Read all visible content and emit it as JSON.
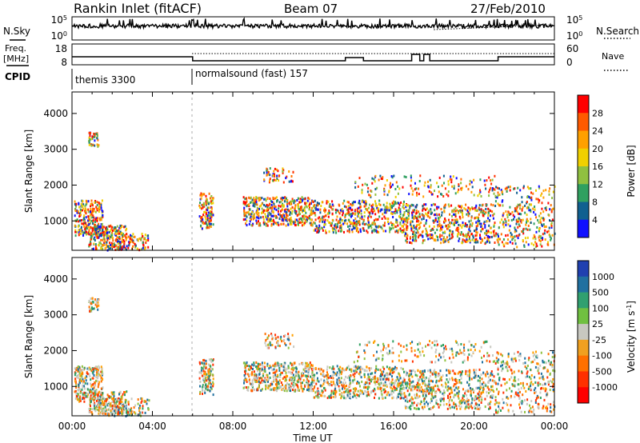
{
  "header": {
    "title": "Rankin Inlet (fitACF)",
    "beam": "Beam 07",
    "date": "27/Feb/2010"
  },
  "nsky_panel": {
    "left_label": "N.Sky",
    "left_ticks": [
      "10^5",
      "10^0"
    ],
    "right_ticks": [
      "10^5",
      "10^0"
    ],
    "right_label": "N.Search"
  },
  "freq_panel": {
    "left_label_1": "Freq.",
    "left_label_2": "[MHz]",
    "left_ticks": [
      "18",
      "8"
    ],
    "right_ticks": [
      "60",
      "0"
    ],
    "right_label": "Nave"
  },
  "cpid_panel": {
    "label": "CPID",
    "modes": [
      {
        "name": "themis 3300",
        "start_hour": 0,
        "end_hour": 6
      },
      {
        "name": "normalsound (fast) 157",
        "start_hour": 6,
        "end_hour": 24
      }
    ]
  },
  "x_axis": {
    "label": "Time UT",
    "ticks": [
      "00:00",
      "04:00",
      "08:00",
      "12:00",
      "16:00",
      "20:00",
      "00:00"
    ],
    "range_hours": [
      0,
      24
    ]
  },
  "chart_data": [
    {
      "type": "heatmap",
      "name": "power",
      "ylabel": "Slant Range [km]",
      "yticks": [
        "1000",
        "2000",
        "3000",
        "4000"
      ],
      "ylim": [
        180,
        4600
      ],
      "colorbar_label": "Power [dB]",
      "colorbar_ticks": [
        "28",
        "24",
        "20",
        "16",
        "12",
        "8",
        "4"
      ],
      "colorbar_colors": [
        "#ff0000",
        "#ff5a00",
        "#ffa000",
        "#f0d000",
        "#90c040",
        "#30a060",
        "#106090",
        "#1010ff"
      ]
    },
    {
      "type": "heatmap",
      "name": "velocity",
      "ylabel": "Slant Range [km]",
      "yticks": [
        "1000",
        "2000",
        "3000",
        "4000"
      ],
      "ylim": [
        180,
        4600
      ],
      "colorbar_label": "Velocity [m s^-1]",
      "colorbar_ticks": [
        "1000",
        "500",
        "100",
        "25",
        "-25",
        "-100",
        "-500",
        "-1000"
      ],
      "colorbar_colors": [
        "#2040b0",
        "#2070a0",
        "#30a070",
        "#70c040",
        "#c8c8c0",
        "#f0a020",
        "#ff7000",
        "#ff3000",
        "#ff0000"
      ]
    }
  ],
  "colors": {
    "ground_scatter": "#c8c8c0"
  }
}
